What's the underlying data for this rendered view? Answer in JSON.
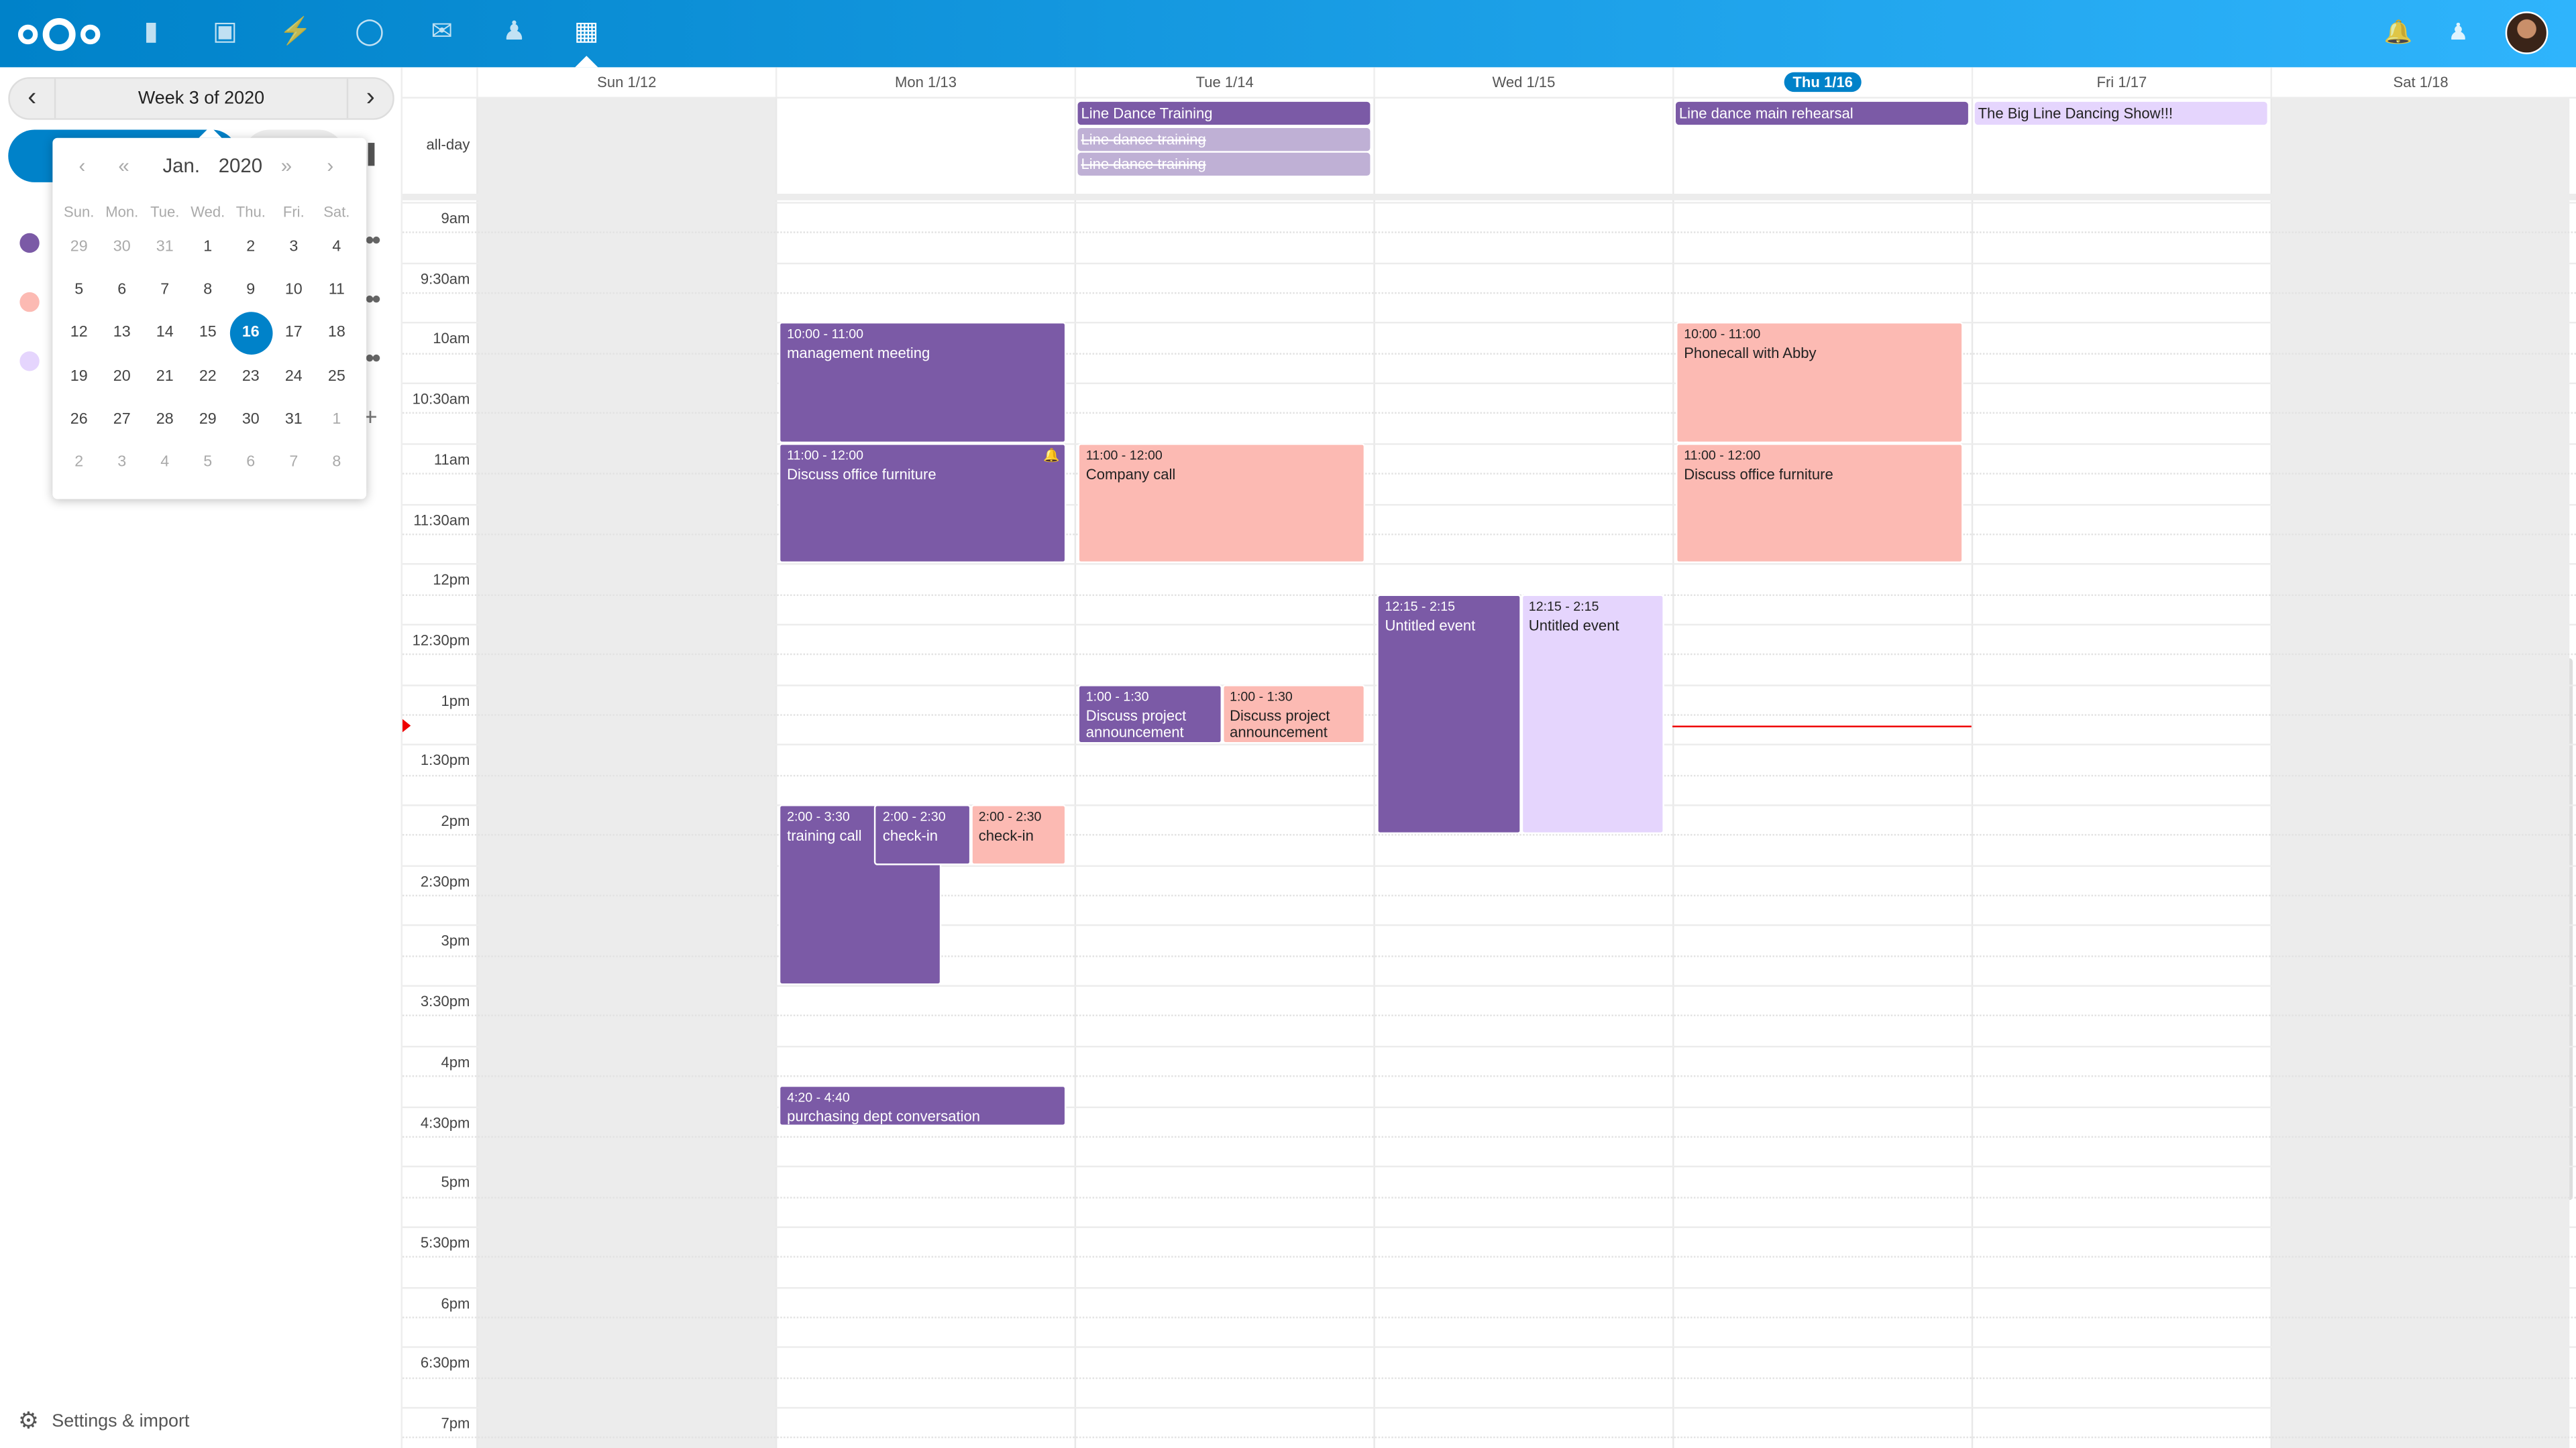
{
  "topbar": {
    "apps": [
      {
        "name": "files",
        "icon": "folder-icon"
      },
      {
        "name": "photos",
        "icon": "image-icon"
      },
      {
        "name": "activity",
        "icon": "lightning-icon"
      },
      {
        "name": "talk",
        "icon": "talk-icon"
      },
      {
        "name": "mail",
        "icon": "mail-icon"
      },
      {
        "name": "contacts",
        "icon": "contacts-icon"
      },
      {
        "name": "calendar",
        "icon": "calendar-icon",
        "active": true
      }
    ],
    "right_icons": [
      "notifications-icon",
      "contacts-menu-icon",
      "avatar"
    ]
  },
  "sidebar": {
    "week_label": "Week 3 of 2020",
    "calendars": [
      {
        "color": "#7b5aa6"
      },
      {
        "color": "#fcbab3"
      },
      {
        "color": "#e5d5fd"
      }
    ],
    "settings_label": "Settings & import"
  },
  "datepicker": {
    "month": "Jan.",
    "year": "2020",
    "weekdays": [
      "Sun.",
      "Mon.",
      "Tue.",
      "Wed.",
      "Thu.",
      "Fri.",
      "Sat."
    ],
    "weeks": [
      [
        "29",
        "30",
        "31",
        "1",
        "2",
        "3",
        "4"
      ],
      [
        "5",
        "6",
        "7",
        "8",
        "9",
        "10",
        "11"
      ],
      [
        "12",
        "13",
        "14",
        "15",
        "16",
        "17",
        "18"
      ],
      [
        "19",
        "20",
        "21",
        "22",
        "23",
        "24",
        "25"
      ],
      [
        "26",
        "27",
        "28",
        "29",
        "30",
        "31",
        "1"
      ],
      [
        "2",
        "3",
        "4",
        "5",
        "6",
        "7",
        "8"
      ]
    ],
    "selected": "16"
  },
  "week": {
    "days": [
      {
        "label": "Sun 1/12",
        "weekend": true
      },
      {
        "label": "Mon 1/13"
      },
      {
        "label": "Tue 1/14"
      },
      {
        "label": "Wed 1/15"
      },
      {
        "label": "Thu 1/16",
        "today": true
      },
      {
        "label": "Fri 1/17"
      },
      {
        "label": "Sat 1/18",
        "weekend": true
      }
    ],
    "allday_label": "all-day",
    "time_labels": [
      "9am",
      "9:30am",
      "10am",
      "10:30am",
      "11am",
      "11:30am",
      "12pm",
      "12:30pm",
      "1pm",
      "1:30pm",
      "2pm",
      "2:30pm",
      "3pm",
      "3:30pm",
      "4pm",
      "4:30pm",
      "5pm",
      "5:30pm",
      "6pm",
      "6:30pm",
      "7pm"
    ],
    "now": "1:21pm",
    "colors": {
      "purple": "#7b5aa6",
      "pink": "#fcbab3",
      "lavender": "#e5d5fd",
      "faded": "#bfb0d5"
    },
    "allday_events": [
      {
        "day": 2,
        "row": 0,
        "title": "Line Dance Training",
        "color": "purple"
      },
      {
        "day": 2,
        "row": 1,
        "title": "Line dance training",
        "color": "faded",
        "cancelled": true
      },
      {
        "day": 2,
        "row": 2,
        "title": "Line dance training",
        "color": "faded",
        "cancelled": true
      },
      {
        "day": 4,
        "row": 0,
        "title": "Line dance main rehearsal",
        "color": "purple"
      },
      {
        "day": 5,
        "row": 0,
        "title": "The Big Line Dancing Show!!!",
        "color": "lavender"
      }
    ],
    "events": [
      {
        "day": 1,
        "start": 10,
        "end": 11,
        "time": "10:00 - 11:00",
        "title": "management meeting",
        "color": "purple",
        "col": 0,
        "cols": 1
      },
      {
        "day": 1,
        "start": 11,
        "end": 12,
        "time": "11:00 - 12:00",
        "title": "Discuss office furniture",
        "color": "purple",
        "col": 0,
        "cols": 1,
        "alarm": true
      },
      {
        "day": 1,
        "start": 14,
        "end": 15.5,
        "time": "2:00 - 3:30",
        "title": "training call",
        "color": "purple",
        "col": 0,
        "cols": 3,
        "span": 1.7
      },
      {
        "day": 1,
        "start": 14,
        "end": 14.5,
        "time": "2:00 - 2:30",
        "title": "check-in",
        "color": "purple",
        "col": 1,
        "cols": 3
      },
      {
        "day": 1,
        "start": 14,
        "end": 14.5,
        "time": "2:00 - 2:30",
        "title": "check-in",
        "color": "pink",
        "col": 2,
        "cols": 3
      },
      {
        "day": 1,
        "start": 16.333,
        "end": 16.667,
        "time": "4:20 - 4:40",
        "title": "purchasing dept conversation",
        "color": "purple",
        "col": 0,
        "cols": 1
      },
      {
        "day": 2,
        "start": 11,
        "end": 12,
        "time": "11:00 - 12:00",
        "title": "Company call",
        "color": "pink",
        "col": 0,
        "cols": 1
      },
      {
        "day": 2,
        "start": 13,
        "end": 13.5,
        "time": "1:00 - 1:30",
        "title": "Discuss project announcement",
        "color": "purple",
        "col": 0,
        "cols": 2
      },
      {
        "day": 2,
        "start": 13,
        "end": 13.5,
        "time": "1:00 - 1:30",
        "title": "Discuss project announcement",
        "color": "pink",
        "col": 1,
        "cols": 2
      },
      {
        "day": 3,
        "start": 12.25,
        "end": 14.25,
        "time": "12:15 - 2:15",
        "title": "Untitled event",
        "color": "purple",
        "col": 0,
        "cols": 2
      },
      {
        "day": 3,
        "start": 12.25,
        "end": 14.25,
        "time": "12:15 - 2:15",
        "title": "Untitled event",
        "color": "lavender",
        "col": 1,
        "cols": 2
      },
      {
        "day": 4,
        "start": 10,
        "end": 11,
        "time": "10:00 - 11:00",
        "title": "Phonecall with Abby",
        "color": "pink",
        "col": 0,
        "cols": 1
      },
      {
        "day": 4,
        "start": 11,
        "end": 12,
        "time": "11:00 - 12:00",
        "title": "Discuss office furniture",
        "color": "pink",
        "col": 0,
        "cols": 1
      }
    ]
  }
}
